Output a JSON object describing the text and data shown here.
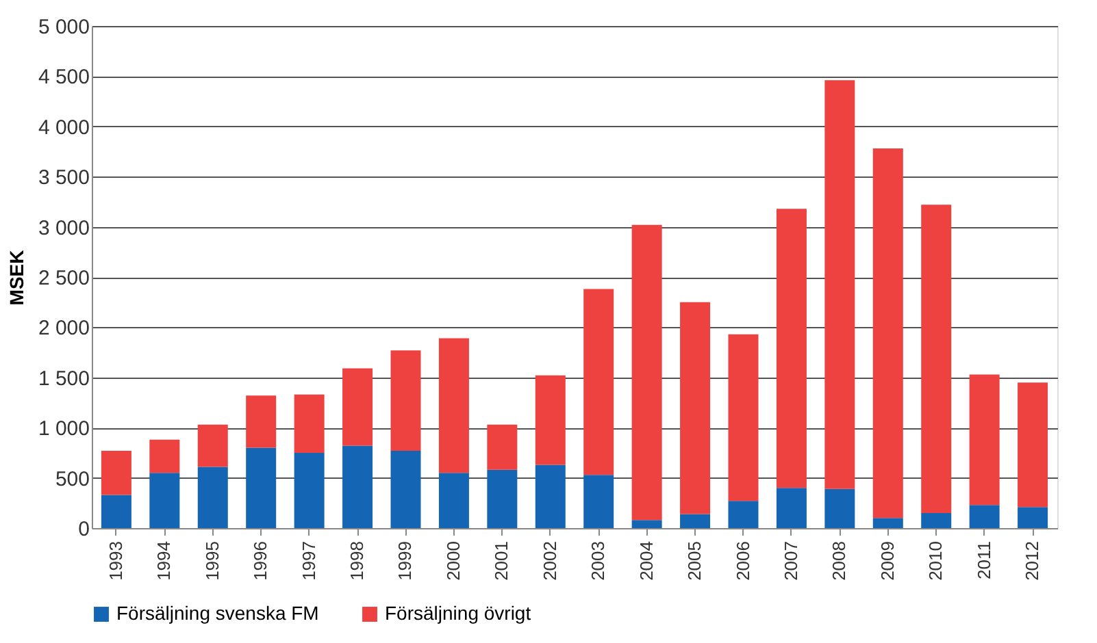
{
  "chart_data": {
    "type": "bar",
    "stacked": true,
    "ylabel": "MSEK",
    "categories": [
      "1993",
      "1994",
      "1995",
      "1996",
      "1997",
      "1998",
      "1999",
      "2000",
      "2001",
      "2002",
      "2003",
      "2004",
      "2005",
      "2006",
      "2007",
      "2008",
      "2009",
      "2010",
      "2011",
      "2012"
    ],
    "series": [
      {
        "name": "Försäljning svenska FM",
        "color": "#1466b4",
        "values": [
          330,
          550,
          610,
          800,
          750,
          820,
          770,
          550,
          580,
          630,
          530,
          80,
          140,
          270,
          400,
          390,
          100,
          150,
          230,
          210
        ]
      },
      {
        "name": "Försäljning övrigt",
        "color": "#ee4240",
        "values": [
          440,
          330,
          420,
          520,
          580,
          770,
          1000,
          1340,
          450,
          890,
          1850,
          2940,
          2110,
          1660,
          2780,
          4070,
          3680,
          3070,
          1300,
          1240
        ]
      }
    ],
    "ylim": [
      0,
      5000
    ],
    "yticks": [
      0,
      500,
      {
        "value": 1000,
        "label": "1 000"
      },
      {
        "value": 1500,
        "label": "1 500"
      },
      {
        "value": 2000,
        "label": "2 000"
      },
      {
        "value": 2500,
        "label": "2 500"
      },
      {
        "value": 3000,
        "label": "3 000"
      },
      {
        "value": 3500,
        "label": "3 500"
      },
      {
        "value": 4000,
        "label": "4 000"
      },
      {
        "value": 4500,
        "label": "4 500"
      },
      {
        "value": 5000,
        "label": "5 000"
      }
    ],
    "grid": "y",
    "legend": "bottom"
  }
}
